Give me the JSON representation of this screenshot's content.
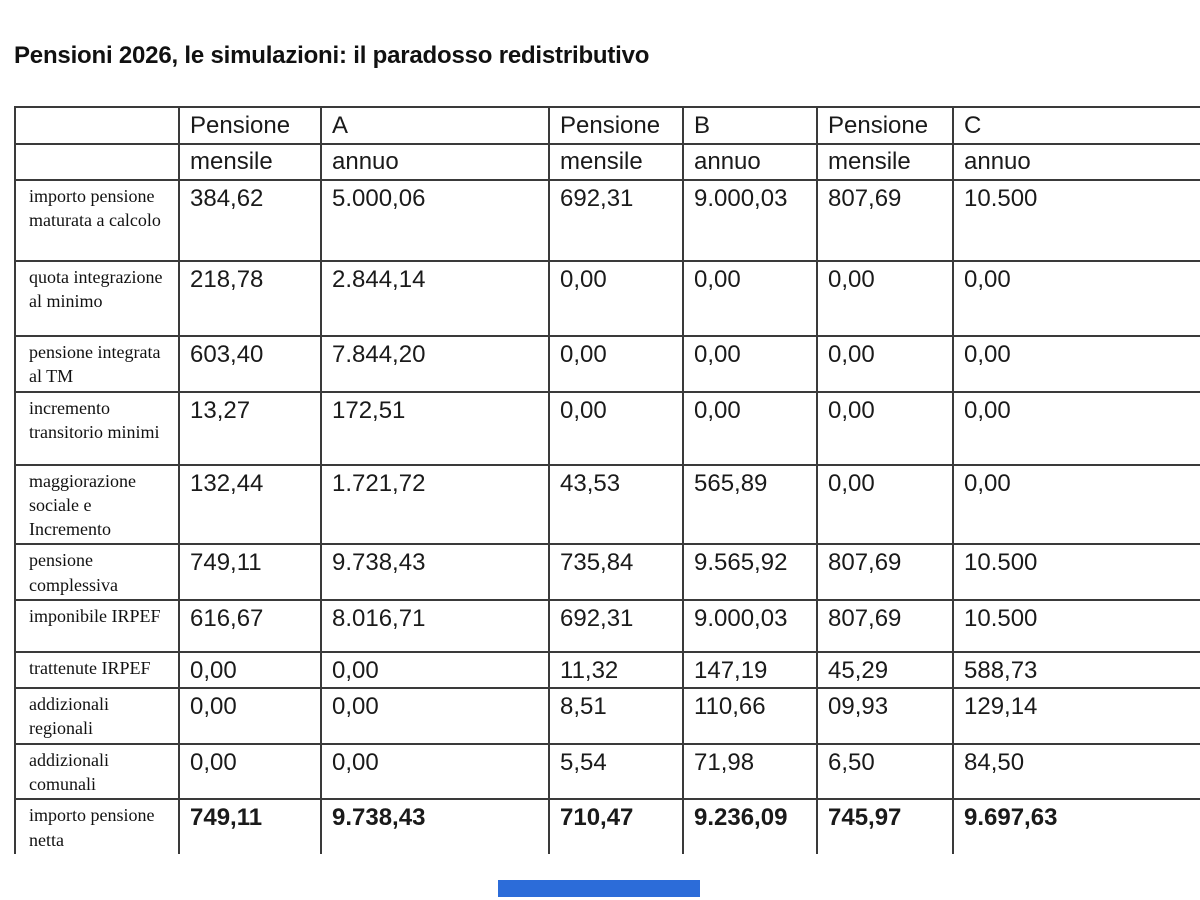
{
  "title": "Pensioni 2026, le simulazioni: il paradosso redistributivo",
  "table": {
    "header_row1": [
      "",
      "Pensione",
      "A",
      "Pensione",
      "B",
      "Pensione",
      "C"
    ],
    "header_row2": [
      "",
      "mensile",
      "annuo",
      "mensile",
      "annuo",
      "mensile",
      "annuo"
    ],
    "rows": [
      {
        "label": "importo pensione maturata a calcolo",
        "values": [
          "384,62",
          "5.000,06",
          "692,31",
          "9.000,03",
          "807,69",
          "10.500"
        ],
        "bold": false
      },
      {
        "label": "quota integrazione al minimo",
        "values": [
          "218,78",
          "2.844,14",
          "0,00",
          "0,00",
          "0,00",
          "0,00"
        ],
        "bold": false
      },
      {
        "label": "pensione integrata al TM",
        "values": [
          "603,40",
          "7.844,20",
          "0,00",
          "0,00",
          "0,00",
          "0,00"
        ],
        "bold": false
      },
      {
        "label": "incremento transitorio minimi",
        "values": [
          "13,27",
          "172,51",
          "0,00",
          "0,00",
          "0,00",
          "0,00"
        ],
        "bold": false
      },
      {
        "label": "maggiorazione sociale e Incremento",
        "values": [
          "132,44",
          "1.721,72",
          "43,53",
          "565,89",
          "0,00",
          "0,00"
        ],
        "bold": false
      },
      {
        "label": "pensione complessiva",
        "values": [
          "749,11",
          "9.738,43",
          "735,84",
          "9.565,92",
          "807,69",
          "10.500"
        ],
        "bold": false
      },
      {
        "label": "imponibile IRPEF",
        "values": [
          "616,67",
          "8.016,71",
          "692,31",
          "9.000,03",
          "807,69",
          "10.500"
        ],
        "bold": false
      },
      {
        "label": "trattenute IRPEF",
        "values": [
          "0,00",
          "0,00",
          "11,32",
          "147,19",
          "45,29",
          "588,73"
        ],
        "bold": false
      },
      {
        "label": "addizionali regionali",
        "values": [
          "0,00",
          "0,00",
          "8,51",
          "110,66",
          "09,93",
          "129,14"
        ],
        "bold": false
      },
      {
        "label": "addizionali comunali",
        "values": [
          "0,00",
          "0,00",
          "5,54",
          "71,98",
          "6,50",
          "84,50"
        ],
        "bold": false
      },
      {
        "label": "importo pensione netta",
        "values": [
          "749,11",
          "9.738,43",
          "710,47",
          "9.236,09",
          "745,97",
          "9.697,63"
        ],
        "bold": true
      }
    ]
  },
  "colors": {
    "text": "#1a1a1a",
    "border": "#3a3a3a",
    "accent_bar": "#2c6cd9",
    "background": "#ffffff"
  }
}
